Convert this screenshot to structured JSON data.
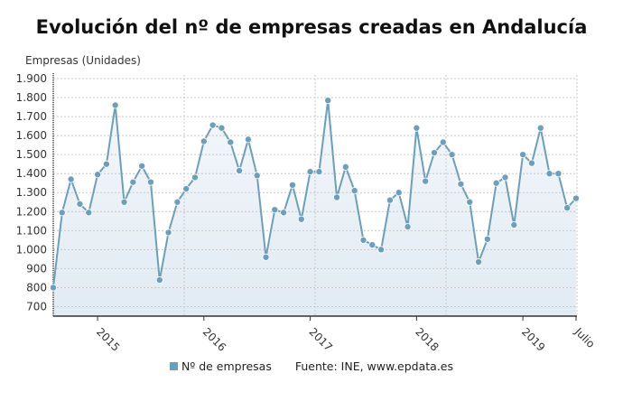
{
  "chart_data": {
    "type": "area",
    "title": "Evolución del nº de empresas creadas en Andalucía",
    "ylabel": "Empresas (Unidades)",
    "ylim": [
      650,
      1900
    ],
    "yticks": [
      700,
      800,
      900,
      1000,
      1100,
      1200,
      1300,
      1400,
      1500,
      1600,
      1700,
      1800,
      1900
    ],
    "ytick_labels": [
      "700",
      "800",
      "900",
      "1.000",
      "1.100",
      "1.200",
      "1.300",
      "1.400",
      "1.500",
      "1.600",
      "1.700",
      "1.800",
      "1.900"
    ],
    "x_start": "2014-08",
    "x_end": "2019-07",
    "xtick_labels": [
      {
        "month": "2015-01",
        "label": "2015"
      },
      {
        "month": "2016-01",
        "label": "2016"
      },
      {
        "month": "2017-01",
        "label": "2017"
      },
      {
        "month": "2018-01",
        "label": "2018"
      },
      {
        "month": "2019-01",
        "label": "2019"
      },
      {
        "month": "2019-07",
        "label": "Julio"
      }
    ],
    "grid": true,
    "legend_position": "bottom",
    "series": [
      {
        "name": "Nº de empresas",
        "color": "#6b9fbb",
        "values": [
          800,
          1195,
          1370,
          1240,
          1195,
          1395,
          1450,
          1760,
          1250,
          1355,
          1440,
          1355,
          840,
          1090,
          1250,
          1320,
          1380,
          1570,
          1655,
          1640,
          1565,
          1415,
          1580,
          1390,
          960,
          1210,
          1195,
          1340,
          1160,
          1410,
          1410,
          1785,
          1275,
          1435,
          1310,
          1050,
          1025,
          1000,
          1260,
          1300,
          1120,
          1640,
          1360,
          1510,
          1565,
          1500,
          1345,
          1250,
          935,
          1055,
          1350,
          1380,
          1130,
          1500,
          1455,
          1640,
          1400,
          1400,
          1220,
          1270
        ]
      }
    ]
  },
  "legend": {
    "series_label": "Nº de empresas",
    "source": "Fuente: INE, www.epdata.es"
  }
}
